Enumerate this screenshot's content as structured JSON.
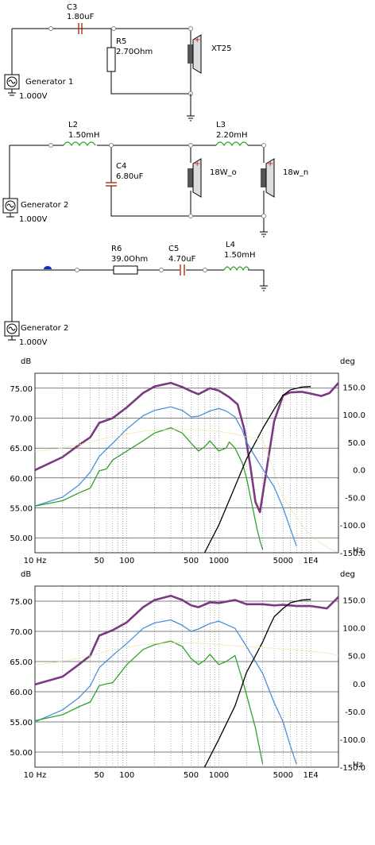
{
  "colors": {
    "purple": "#7a3a80",
    "blue": "#4a90d9",
    "green": "#33a02c",
    "black": "#000000",
    "yellow": "#e6e6a0",
    "capacitor": "#b04020",
    "speaker_red": "#d02020"
  },
  "schematic1": {
    "c3_name": "C3",
    "c3_value": "1.80uF",
    "r5_name": "R5",
    "r5_value": "2.70Ohm",
    "speaker": "XT25",
    "generator_name": "Generator 1",
    "generator_value": "1.000V"
  },
  "schematic2": {
    "l2_name": "L2",
    "l2_value": "1.50mH",
    "c4_name": "C4",
    "c4_value": "6.80uF",
    "l3_name": "L3",
    "l3_value": "2.20mH",
    "speaker1": "18W_o",
    "speaker2": "18w_n",
    "generator_name": "Generator 2",
    "generator_value": "1.000V"
  },
  "schematic3": {
    "r6_name": "R6",
    "r6_value": "39.0Ohm",
    "c5_name": "C5",
    "c5_value": "4.70uF",
    "l4_name": "L4",
    "l4_value": "1.50mH",
    "generator_name": "Generator 2",
    "generator_value": "1.000V"
  },
  "chart_data": [
    {
      "type": "line",
      "title": "",
      "xlabel": "Hz",
      "ylabel": "dB",
      "y2label": "deg",
      "xscale": "log",
      "xlim": [
        10,
        20000
      ],
      "ylim": [
        47.5,
        77.5
      ],
      "y2lim": [
        -150,
        175
      ],
      "x_tick_labels": [
        "10 Hz",
        "50",
        "100",
        "500",
        "1000",
        "5000",
        "1E4"
      ],
      "y_tick_labels": [
        "75.00",
        "70.00",
        "65.00",
        "60.00",
        "55.00",
        "50.00"
      ],
      "y2_tick_labels": [
        "150.0",
        "100.0",
        "50.0",
        "0.0",
        "-50.0",
        "-100.0",
        "-150.0"
      ],
      "series": [
        {
          "color": "purple",
          "axis": "left",
          "x": [
            10,
            20,
            30,
            40,
            50,
            70,
            100,
            150,
            200,
            300,
            400,
            500,
            600,
            800,
            1000,
            1300,
            1600,
            1900,
            2200,
            2500,
            2800,
            3200,
            4000,
            5000,
            6000,
            8000,
            10000,
            13000,
            16000,
            20000
          ],
          "y": [
            61.3,
            63.5,
            65.5,
            66.8,
            69.2,
            70,
            71.8,
            74.2,
            75.3,
            75.9,
            75.2,
            74.5,
            74,
            75,
            74.6,
            73.5,
            72.3,
            68,
            62,
            56,
            54.3,
            60,
            69.5,
            73.8,
            74.3,
            74.4,
            74.1,
            73.7,
            74.2,
            75.9
          ]
        },
        {
          "color": "blue",
          "axis": "left",
          "x": [
            10,
            20,
            30,
            40,
            50,
            70,
            100,
            150,
            200,
            300,
            400,
            500,
            600,
            800,
            1000,
            1200,
            1500,
            1800,
            2000,
            2500,
            3000,
            4000,
            5000,
            6000,
            7000
          ],
          "y": [
            55.3,
            56.8,
            58.8,
            61,
            63.6,
            65.8,
            68.2,
            70.4,
            71.3,
            71.9,
            71.3,
            70.2,
            70.3,
            71.2,
            71.6,
            71.2,
            70.2,
            68,
            66,
            63.5,
            61.5,
            58.5,
            55,
            51.5,
            48.6
          ]
        },
        {
          "color": "green",
          "axis": "left",
          "x": [
            10,
            20,
            30,
            40,
            50,
            60,
            70,
            100,
            150,
            200,
            300,
            400,
            500,
            600,
            700,
            800,
            1000,
            1200,
            1300,
            1500,
            1800,
            2000,
            2300,
            2600,
            2800,
            3000
          ],
          "y": [
            55.3,
            56.2,
            57.5,
            58.3,
            61.2,
            61.5,
            63,
            64.5,
            66.2,
            67.5,
            68.4,
            67.5,
            65.8,
            64.5,
            65.2,
            66.2,
            64.5,
            65,
            66,
            65,
            62.5,
            60,
            55.5,
            51.5,
            49.5,
            48
          ]
        },
        {
          "color": "black",
          "axis": "right",
          "x": [
            700,
            1000,
            1500,
            2000,
            2500,
            3000,
            4000,
            5000,
            6000,
            8000,
            10000
          ],
          "y": [
            -150,
            -100,
            -30,
            20,
            50,
            75,
            110,
            135,
            145,
            150,
            151
          ]
        },
        {
          "color": "yellow",
          "axis": "right",
          "x": [
            10,
            20,
            40,
            60,
            100,
            150,
            200,
            300,
            500,
            700,
            1000,
            1500,
            2000,
            3000,
            5000,
            8000,
            10000,
            15000,
            20000
          ],
          "y": [
            33,
            40,
            50,
            58,
            65,
            70,
            72,
            73,
            73,
            72,
            70,
            65,
            60,
            55,
            -50,
            -100,
            -120,
            -140,
            -150
          ]
        }
      ]
    },
    {
      "type": "line",
      "title": "",
      "xlabel": "Hz",
      "ylabel": "dB",
      "y2label": "deg",
      "xscale": "log",
      "xlim": [
        10,
        20000
      ],
      "ylim": [
        47.5,
        77.5
      ],
      "y2lim": [
        -150,
        175
      ],
      "x_tick_labels": [
        "10 Hz",
        "50",
        "100",
        "500",
        "1000",
        "5000",
        "1E4"
      ],
      "y_tick_labels": [
        "75.00",
        "70.00",
        "65.00",
        "60.00",
        "55.00",
        "50.00"
      ],
      "y2_tick_labels": [
        "150.0",
        "100.0",
        "50.0",
        "0.0",
        "-50.0",
        "-100.0",
        "-150.0"
      ],
      "series": [
        {
          "color": "purple",
          "axis": "left",
          "x": [
            10,
            20,
            30,
            40,
            50,
            70,
            100,
            150,
            200,
            300,
            400,
            500,
            600,
            800,
            1000,
            1500,
            2000,
            3000,
            4000,
            5000,
            7000,
            10000,
            15000,
            20000
          ],
          "y": [
            61.2,
            62.5,
            64.5,
            66,
            69.3,
            70.2,
            71.5,
            74,
            75.2,
            75.9,
            75.2,
            74.3,
            74,
            74.8,
            74.7,
            75.2,
            74.5,
            74.5,
            74.3,
            74.4,
            74.2,
            74.2,
            73.8,
            75.7
          ]
        },
        {
          "color": "blue",
          "axis": "left",
          "x": [
            10,
            20,
            30,
            40,
            50,
            70,
            100,
            150,
            200,
            300,
            400,
            500,
            600,
            800,
            1000,
            1500,
            2000,
            3000,
            4000,
            5000,
            6000,
            7000
          ],
          "y": [
            55,
            57,
            59,
            61,
            64,
            66,
            68,
            70.5,
            71.4,
            71.9,
            71,
            70,
            70.4,
            71.3,
            71.7,
            70.5,
            67.5,
            63,
            58.2,
            55,
            51,
            48
          ]
        },
        {
          "color": "green",
          "axis": "left",
          "x": [
            10,
            20,
            30,
            40,
            50,
            60,
            70,
            100,
            150,
            200,
            300,
            400,
            500,
            600,
            700,
            800,
            1000,
            1200,
            1500,
            1800,
            2000,
            2500,
            3000
          ],
          "y": [
            55.2,
            56.2,
            57.5,
            58.3,
            61,
            61.3,
            61.5,
            64.5,
            67,
            67.8,
            68.4,
            67.5,
            65.5,
            64.5,
            65.2,
            66.2,
            64.5,
            65,
            66,
            62,
            59.5,
            54,
            48
          ]
        },
        {
          "color": "black",
          "axis": "right",
          "x": [
            700,
            1000,
            1500,
            2000,
            2500,
            3000,
            3500,
            4000,
            5000,
            6000,
            8000,
            10000
          ],
          "y": [
            -150,
            -100,
            -40,
            20,
            50,
            75,
            100,
            120,
            135,
            145,
            150,
            151
          ]
        },
        {
          "color": "yellow",
          "axis": "right",
          "x": [
            10,
            20,
            40,
            60,
            100,
            150,
            200,
            300,
            500,
            700,
            1000,
            1500,
            2000,
            3000,
            5000,
            8000,
            10000,
            15000,
            20000
          ],
          "y": [
            33,
            40,
            50,
            58,
            65,
            70,
            72,
            73,
            73,
            72,
            70,
            68,
            66,
            65,
            62,
            60,
            58,
            55,
            50
          ]
        }
      ]
    }
  ]
}
